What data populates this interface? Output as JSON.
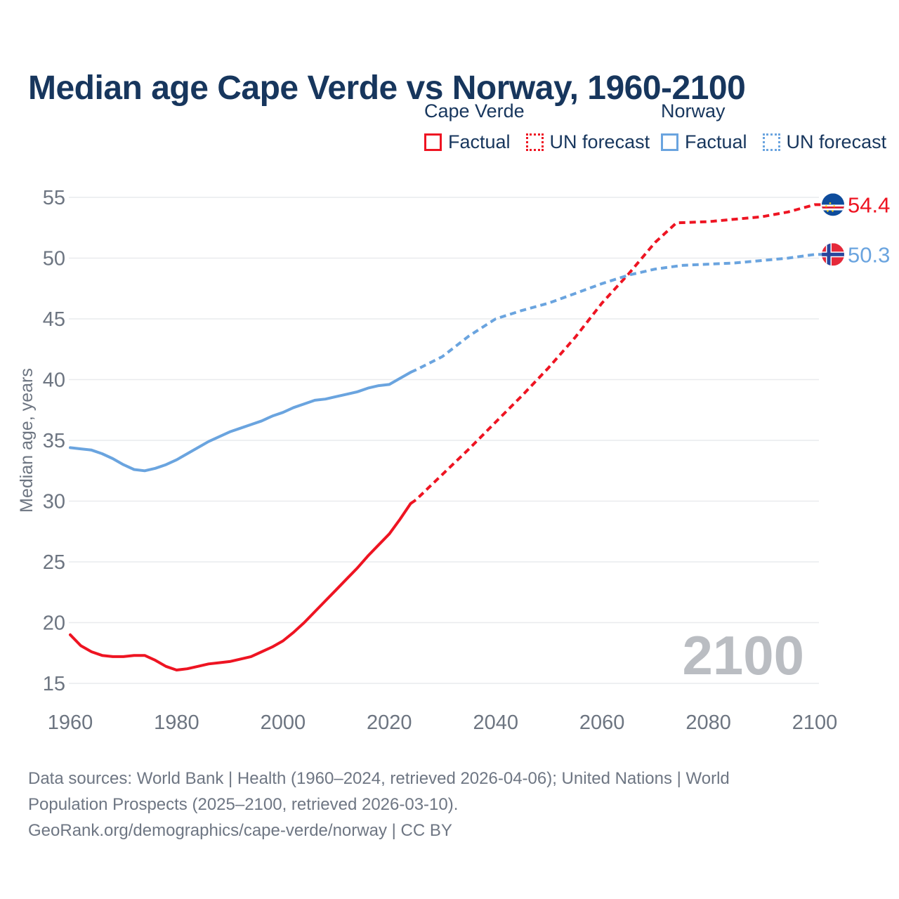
{
  "page": {
    "title": "Median age Cape Verde vs Norway, 1960-2100",
    "footer_lines": [
      "Data sources: World Bank | Health (1960–2024, retrieved 2026-04-06); United Nations | World",
      "Population Prospects (2025–2100, retrieved 2026-03-10).",
      "GeoRank.org/demographics/cape-verde/norway | CC BY"
    ]
  },
  "legend": {
    "groups": [
      {
        "name": "Cape Verde",
        "color": "#ee1422",
        "factual_label": "Factual",
        "forecast_label": "UN forecast"
      },
      {
        "name": "Norway",
        "color": "#6aa4df",
        "factual_label": "Factual",
        "forecast_label": "UN forecast"
      }
    ]
  },
  "chart_data": {
    "type": "line",
    "title": "Median age Cape Verde vs Norway, 1960-2100",
    "xlabel": "",
    "ylabel": "Median age, years",
    "xlim": [
      1960,
      2100
    ],
    "ylim": [
      15,
      55
    ],
    "x_ticks": [
      1960,
      1980,
      2000,
      2020,
      2040,
      2060,
      2080,
      2100
    ],
    "y_ticks": [
      15,
      20,
      25,
      30,
      35,
      40,
      45,
      50,
      55
    ],
    "grid": "horizontal",
    "legend_position": "top-right",
    "watermark": "2100",
    "colors": {
      "cape_verde": "#ee1422",
      "norway": "#6aa4df",
      "grid": "#e9ebee",
      "axis_text": "#6d7581",
      "watermark": "#babdc2",
      "title": "#17365d"
    },
    "series": [
      {
        "name": "Cape Verde",
        "color": "#ee1422",
        "flag": "cape-verde",
        "flag_icon": "cape-verde-flag-icon",
        "style_factual": "solid",
        "style_forecast": "dashed",
        "end_label": "54.4",
        "factual": [
          [
            1960,
            19.0
          ],
          [
            1962,
            18.1
          ],
          [
            1964,
            17.6
          ],
          [
            1966,
            17.3
          ],
          [
            1968,
            17.2
          ],
          [
            1970,
            17.2
          ],
          [
            1972,
            17.3
          ],
          [
            1974,
            17.3
          ],
          [
            1976,
            16.9
          ],
          [
            1978,
            16.4
          ],
          [
            1980,
            16.1
          ],
          [
            1982,
            16.2
          ],
          [
            1984,
            16.4
          ],
          [
            1986,
            16.6
          ],
          [
            1988,
            16.7
          ],
          [
            1990,
            16.8
          ],
          [
            1992,
            17.0
          ],
          [
            1994,
            17.2
          ],
          [
            1996,
            17.6
          ],
          [
            1998,
            18.0
          ],
          [
            2000,
            18.5
          ],
          [
            2002,
            19.2
          ],
          [
            2004,
            20.0
          ],
          [
            2006,
            20.9
          ],
          [
            2008,
            21.8
          ],
          [
            2010,
            22.7
          ],
          [
            2012,
            23.6
          ],
          [
            2014,
            24.5
          ],
          [
            2016,
            25.5
          ],
          [
            2018,
            26.4
          ],
          [
            2020,
            27.3
          ],
          [
            2022,
            28.5
          ],
          [
            2024,
            29.8
          ]
        ],
        "forecast": [
          [
            2025,
            30.1
          ],
          [
            2030,
            32.2
          ],
          [
            2035,
            34.3
          ],
          [
            2040,
            36.5
          ],
          [
            2045,
            38.7
          ],
          [
            2050,
            41.0
          ],
          [
            2055,
            43.5
          ],
          [
            2060,
            46.3
          ],
          [
            2065,
            48.7
          ],
          [
            2070,
            51.3
          ],
          [
            2074,
            52.9
          ],
          [
            2080,
            53.0
          ],
          [
            2085,
            53.2
          ],
          [
            2090,
            53.4
          ],
          [
            2095,
            53.8
          ],
          [
            2100,
            54.4
          ]
        ]
      },
      {
        "name": "Norway",
        "color": "#6aa4df",
        "flag": "norway",
        "flag_icon": "norway-flag-icon",
        "style_factual": "solid",
        "style_forecast": "dashed",
        "end_label": "50.3",
        "factual": [
          [
            1960,
            34.4
          ],
          [
            1962,
            34.3
          ],
          [
            1964,
            34.2
          ],
          [
            1966,
            33.9
          ],
          [
            1968,
            33.5
          ],
          [
            1970,
            33.0
          ],
          [
            1972,
            32.6
          ],
          [
            1974,
            32.5
          ],
          [
            1976,
            32.7
          ],
          [
            1978,
            33.0
          ],
          [
            1980,
            33.4
          ],
          [
            1982,
            33.9
          ],
          [
            1984,
            34.4
          ],
          [
            1986,
            34.9
          ],
          [
            1988,
            35.3
          ],
          [
            1990,
            35.7
          ],
          [
            1992,
            36.0
          ],
          [
            1994,
            36.3
          ],
          [
            1996,
            36.6
          ],
          [
            1998,
            37.0
          ],
          [
            2000,
            37.3
          ],
          [
            2002,
            37.7
          ],
          [
            2004,
            38.0
          ],
          [
            2006,
            38.3
          ],
          [
            2008,
            38.4
          ],
          [
            2010,
            38.6
          ],
          [
            2012,
            38.8
          ],
          [
            2014,
            39.0
          ],
          [
            2016,
            39.3
          ],
          [
            2018,
            39.5
          ],
          [
            2020,
            39.6
          ],
          [
            2022,
            40.1
          ],
          [
            2024,
            40.6
          ]
        ],
        "forecast": [
          [
            2025,
            40.8
          ],
          [
            2030,
            41.9
          ],
          [
            2035,
            43.6
          ],
          [
            2040,
            45.0
          ],
          [
            2045,
            45.7
          ],
          [
            2050,
            46.3
          ],
          [
            2055,
            47.1
          ],
          [
            2060,
            47.9
          ],
          [
            2065,
            48.6
          ],
          [
            2070,
            49.1
          ],
          [
            2075,
            49.4
          ],
          [
            2080,
            49.5
          ],
          [
            2085,
            49.6
          ],
          [
            2090,
            49.8
          ],
          [
            2095,
            50.0
          ],
          [
            2100,
            50.3
          ]
        ]
      }
    ]
  }
}
